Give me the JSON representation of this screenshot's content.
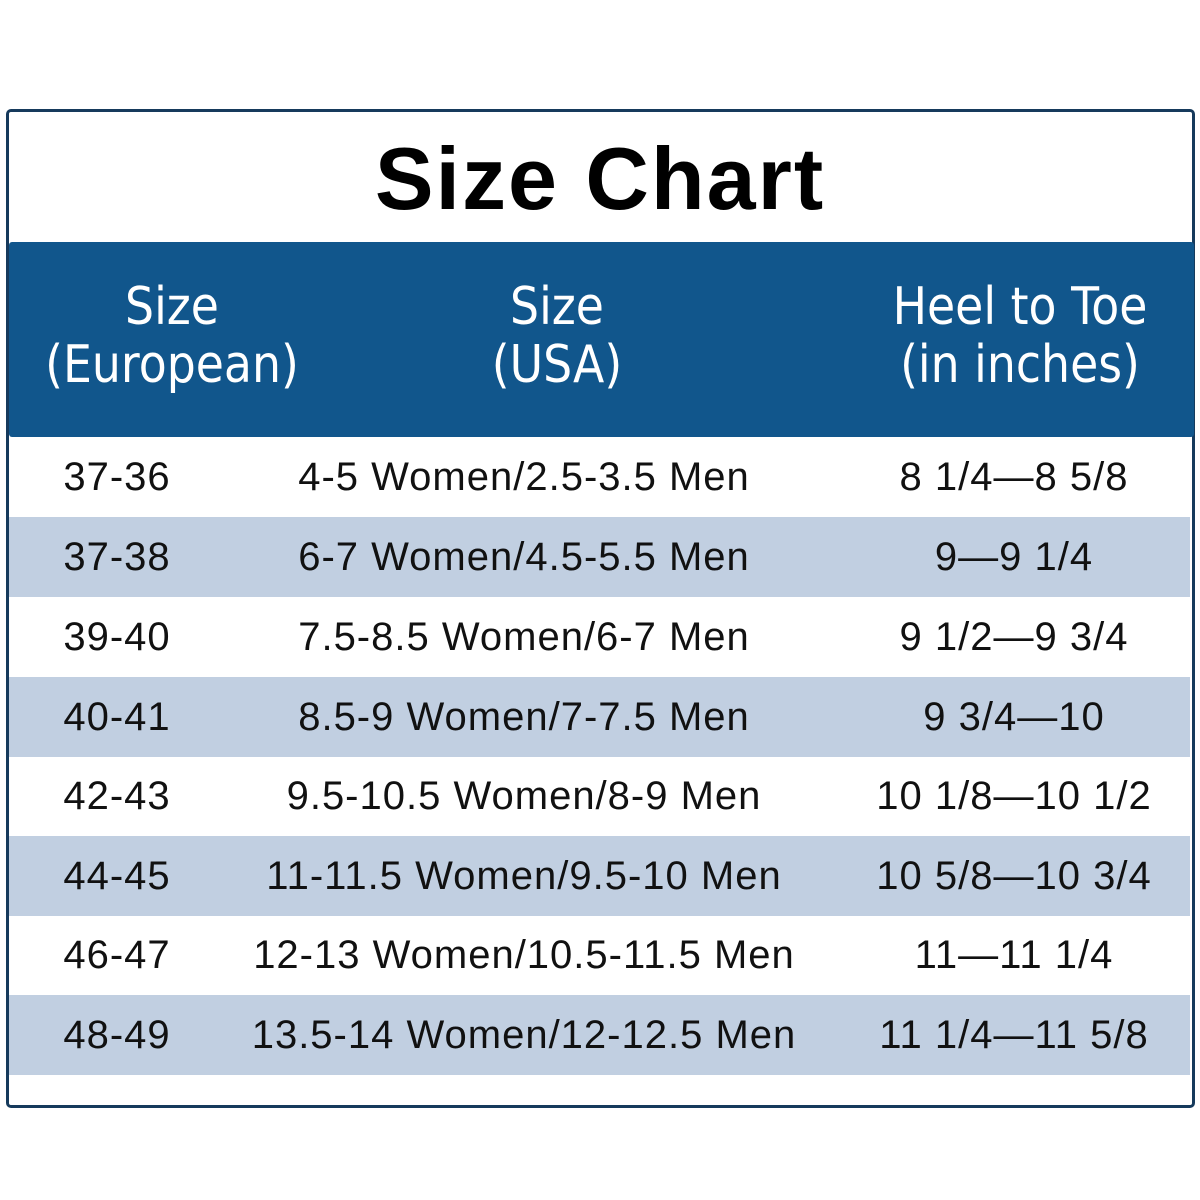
{
  "title": "Size Chart",
  "colors": {
    "header_bg": "#11568c",
    "alt_row_bg": "#c1cfe1",
    "border": "#163a5c"
  },
  "headers": [
    "Size\n(European)",
    "Size\n(USA)",
    "Heel to Toe\n(in inches)"
  ],
  "rows": [
    [
      "37-36",
      "4-5 Women/2.5-3.5 Men",
      "8 1/4—8 5/8"
    ],
    [
      "37-38",
      "6-7 Women/4.5-5.5 Men",
      "9—9 1/4"
    ],
    [
      "39-40",
      "7.5-8.5 Women/6-7 Men",
      "9 1/2—9 3/4"
    ],
    [
      "40-41",
      "8.5-9 Women/7-7.5 Men",
      "9 3/4—10"
    ],
    [
      "42-43",
      "9.5-10.5 Women/8-9 Men",
      "10 1/8—10 1/2"
    ],
    [
      "44-45",
      "11-11.5 Women/9.5-10 Men",
      "10 5/8—10 3/4"
    ],
    [
      "46-47",
      "12-13 Women/10.5-11.5 Men",
      "11—11 1/4"
    ],
    [
      "48-49",
      "13.5-14 Women/12-12.5 Men",
      "11 1/4—11 5/8"
    ]
  ]
}
